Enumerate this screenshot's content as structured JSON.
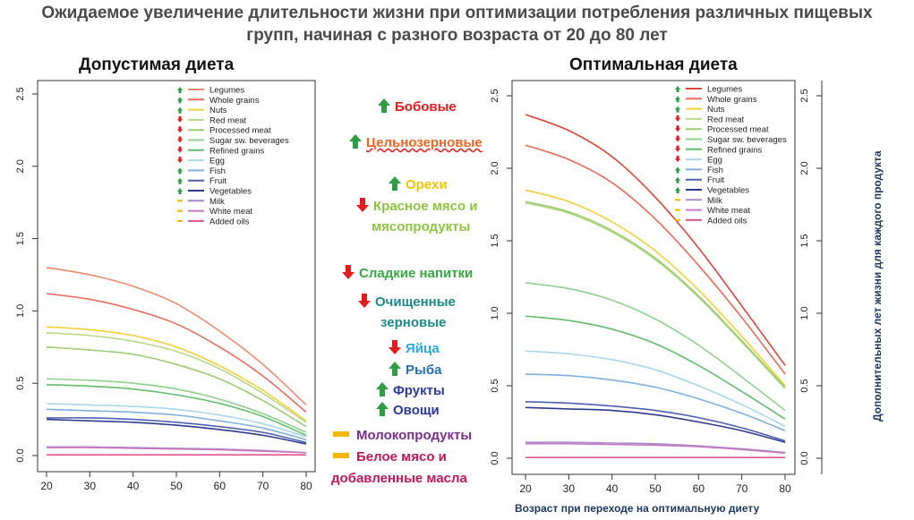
{
  "title": {
    "line1": "Ожидаемое увеличение длительности жизни при оптимизации потребления различных пищевых",
    "line2": "групп, начиная с разного возраста от 20 до 80 лет"
  },
  "left_title": "Допустимая диета",
  "right_title": "Оптимальная диета",
  "x_axis_label": "Возраст при переходе на оптимальную диету",
  "y_axis_label": "Дополнительных лет жизни для каждого продукта",
  "colors": {
    "up": "#2e9e45",
    "down": "#e41a1c",
    "neutral": "#f5b800"
  },
  "middle_labels": [
    {
      "text": "Бобовые",
      "color": "#e41a1c",
      "icon": "up-arrow-icon"
    },
    {
      "text": "Цельнозерновые",
      "color": "#f26522",
      "icon": "up-arrow-icon"
    },
    {
      "text": "Орехи",
      "color": "#f5c400",
      "icon": "up-arrow-icon"
    },
    {
      "text": "Красное мясо и",
      "color": "#8cc63f",
      "icon": "down-arrow-icon"
    },
    {
      "text": "мясопродукты",
      "color": "#8cc63f",
      "icon": ""
    },
    {
      "text": "Сладкие напитки",
      "color": "#3aa845",
      "icon": "down-arrow-icon"
    },
    {
      "text": "Очищенные",
      "color": "#1a8a8a",
      "icon": "down-arrow-icon"
    },
    {
      "text": "зерновые",
      "color": "#1a8a8a",
      "icon": ""
    },
    {
      "text": "Яйца",
      "color": "#29abe2",
      "icon": "down-arrow-icon"
    },
    {
      "text": "Рыба",
      "color": "#2a6db5",
      "icon": "up-arrow-icon"
    },
    {
      "text": "Фрукты",
      "color": "#2b3a9e",
      "icon": "up-arrow-icon"
    },
    {
      "text": "Овощи",
      "color": "#2b3a9e",
      "icon": "up-arrow-icon"
    },
    {
      "text": "Молокопродукты",
      "color": "#7b2e8e",
      "icon": "dash-icon"
    },
    {
      "text": "Белое мясо и",
      "color": "#c2185b",
      "icon": "dash-icon"
    },
    {
      "text": "добавленные масла",
      "color": "#c2185b",
      "icon": ""
    }
  ],
  "chart_data": [
    {
      "type": "line",
      "title": "Допустимая диета",
      "xlim": [
        20,
        80
      ],
      "ylim": [
        0,
        2.5
      ],
      "xticks": [
        20,
        30,
        40,
        50,
        60,
        70,
        80
      ],
      "yticks": [
        "0.0",
        "0.5",
        "1.0",
        "1.5",
        "2.0",
        "2.5"
      ],
      "x": [
        20,
        30,
        40,
        50,
        60,
        70,
        80
      ],
      "legend": "top-right",
      "series": [
        {
          "name": "Legumes",
          "color": "#f08a6a",
          "values": [
            1.3,
            1.25,
            1.17,
            1.05,
            0.86,
            0.63,
            0.35
          ],
          "mark": "up"
        },
        {
          "name": "Whole grains",
          "color": "#ef6a5a",
          "values": [
            1.12,
            1.08,
            1.01,
            0.91,
            0.75,
            0.55,
            0.3
          ],
          "mark": "up"
        },
        {
          "name": "Nuts",
          "color": "#f5cf3a",
          "values": [
            0.89,
            0.87,
            0.83,
            0.75,
            0.62,
            0.45,
            0.24
          ],
          "mark": "up"
        },
        {
          "name": "Red meat",
          "color": "#b9d98a",
          "values": [
            0.85,
            0.83,
            0.79,
            0.72,
            0.6,
            0.43,
            0.23
          ],
          "mark": "down"
        },
        {
          "name": "Processed meat",
          "color": "#9acd70",
          "values": [
            0.75,
            0.73,
            0.7,
            0.63,
            0.53,
            0.38,
            0.2
          ],
          "mark": "down"
        },
        {
          "name": "Sugar  sw. beverages",
          "color": "#8fd18c",
          "values": [
            0.53,
            0.52,
            0.5,
            0.46,
            0.39,
            0.29,
            0.16
          ],
          "mark": "down"
        },
        {
          "name": "Refined grains",
          "color": "#5fbf6a",
          "values": [
            0.49,
            0.48,
            0.46,
            0.42,
            0.36,
            0.27,
            0.14
          ],
          "mark": "down"
        },
        {
          "name": "Egg",
          "color": "#a8d8ea",
          "values": [
            0.36,
            0.35,
            0.34,
            0.32,
            0.28,
            0.22,
            0.13
          ],
          "mark": "down"
        },
        {
          "name": "Fish",
          "color": "#7fb0e0",
          "values": [
            0.32,
            0.31,
            0.3,
            0.28,
            0.24,
            0.19,
            0.11
          ],
          "mark": "up"
        },
        {
          "name": "Fruit",
          "color": "#4c5fb4",
          "values": [
            0.26,
            0.26,
            0.25,
            0.23,
            0.2,
            0.16,
            0.09
          ],
          "mark": "up"
        },
        {
          "name": "Vegetables",
          "color": "#2e3a8c",
          "values": [
            0.25,
            0.24,
            0.23,
            0.21,
            0.18,
            0.14,
            0.08
          ],
          "mark": "up"
        },
        {
          "name": "Milk",
          "color": "#a58cd0",
          "values": [
            0.06,
            0.06,
            0.055,
            0.05,
            0.045,
            0.035,
            0.02
          ],
          "mark": "neutral"
        },
        {
          "name": "White meat",
          "color": "#c978c0",
          "values": [
            0.055,
            0.055,
            0.05,
            0.045,
            0.04,
            0.03,
            0.02
          ],
          "mark": "neutral"
        },
        {
          "name": "Added oils",
          "color": "#e05590",
          "values": [
            0.005,
            0.005,
            0.005,
            0.005,
            0.005,
            0.005,
            0.005
          ],
          "mark": "neutral"
        }
      ]
    },
    {
      "type": "line",
      "title": "Оптимальная диета",
      "xlim": [
        20,
        80
      ],
      "ylim": [
        0,
        2.5
      ],
      "xticks": [
        20,
        30,
        40,
        50,
        60,
        70,
        80
      ],
      "yticks": [
        "0.0",
        "0.5",
        "1.0",
        "1.5",
        "2.0",
        "2.5"
      ],
      "x": [
        20,
        30,
        40,
        50,
        60,
        70,
        80
      ],
      "legend": "top-right",
      "series": [
        {
          "name": "Legumes",
          "color": "#e0443a",
          "values": [
            2.37,
            2.26,
            2.08,
            1.8,
            1.45,
            1.05,
            0.64
          ],
          "mark": "up"
        },
        {
          "name": "Whole grains",
          "color": "#ef6a5a",
          "values": [
            2.16,
            2.06,
            1.9,
            1.65,
            1.33,
            0.97,
            0.58
          ],
          "mark": "up"
        },
        {
          "name": "Nuts",
          "color": "#f5cf3a",
          "values": [
            1.85,
            1.77,
            1.63,
            1.43,
            1.16,
            0.84,
            0.5
          ],
          "mark": "up"
        },
        {
          "name": "Red meat",
          "color": "#b9d98a",
          "values": [
            1.76,
            1.69,
            1.56,
            1.37,
            1.11,
            0.8,
            0.48
          ],
          "mark": "down"
        },
        {
          "name": "Processed meat",
          "color": "#9acd70",
          "values": [
            1.77,
            1.7,
            1.57,
            1.38,
            1.12,
            0.81,
            0.49
          ],
          "mark": "down"
        },
        {
          "name": "Sugar  sw. beverages",
          "color": "#8fd18c",
          "values": [
            1.21,
            1.17,
            1.09,
            0.96,
            0.78,
            0.56,
            0.33
          ],
          "mark": "down"
        },
        {
          "name": "Refined grains",
          "color": "#5fbf6a",
          "values": [
            0.98,
            0.95,
            0.89,
            0.79,
            0.64,
            0.46,
            0.27
          ],
          "mark": "down"
        },
        {
          "name": "Egg",
          "color": "#a8d8ea",
          "values": [
            0.74,
            0.72,
            0.68,
            0.61,
            0.5,
            0.37,
            0.22
          ],
          "mark": "down"
        },
        {
          "name": "Fish",
          "color": "#7fb0e0",
          "values": [
            0.58,
            0.57,
            0.54,
            0.49,
            0.41,
            0.31,
            0.19
          ],
          "mark": "up"
        },
        {
          "name": "Fruit",
          "color": "#4c5fb4",
          "values": [
            0.39,
            0.38,
            0.36,
            0.33,
            0.28,
            0.21,
            0.12
          ],
          "mark": "up"
        },
        {
          "name": "Vegetables",
          "color": "#2e3a8c",
          "values": [
            0.35,
            0.34,
            0.33,
            0.3,
            0.25,
            0.19,
            0.11
          ],
          "mark": "up"
        },
        {
          "name": "Milk",
          "color": "#a58cd0",
          "values": [
            0.11,
            0.11,
            0.105,
            0.1,
            0.085,
            0.065,
            0.04
          ],
          "mark": "neutral"
        },
        {
          "name": "White meat",
          "color": "#c978c0",
          "values": [
            0.1,
            0.1,
            0.095,
            0.09,
            0.08,
            0.06,
            0.035
          ],
          "mark": "neutral"
        },
        {
          "name": "Added oils",
          "color": "#e05590",
          "values": [
            0.005,
            0.005,
            0.005,
            0.005,
            0.005,
            0.005,
            0.005
          ],
          "mark": "neutral"
        }
      ]
    }
  ]
}
